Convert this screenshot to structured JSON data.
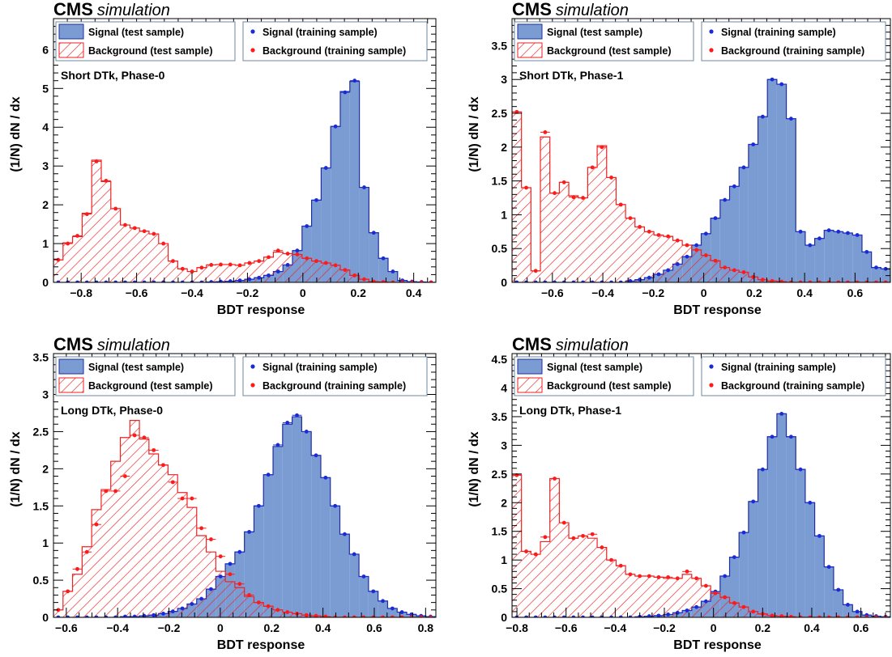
{
  "figure": {
    "colors": {
      "signal_fill": "#7b9bd3",
      "signal_line": "#1f2f9f",
      "signal_point": "#1a2bd6",
      "background_line": "#ee2222",
      "background_point": "#ff1a1a",
      "legend_border": "#6f8aa0"
    },
    "legend": {
      "signal_test": "Signal (test sample)",
      "background_test": "Background (test sample)",
      "signal_train": "Signal (training sample)",
      "background_train": "Background (training sample)"
    }
  },
  "chart_data": [
    {
      "type": "histogram",
      "cms_label": "CMS",
      "simulation_label": "simulation",
      "panel_label": "Short DTk, Phase-0",
      "xlabel": "BDT response",
      "ylabel": "(1/N) dN / dx",
      "xlim": [
        -0.9,
        0.48
      ],
      "ylim": [
        0,
        6.8
      ],
      "xticks": [
        -0.8,
        -0.6,
        -0.4,
        -0.2,
        0,
        0.2,
        0.4
      ],
      "xtick_labels": [
        "−0.8",
        "−0.6",
        "−0.4",
        "−0.2",
        "0",
        "0.2",
        "0.4"
      ],
      "yticks": [
        0,
        1,
        2,
        3,
        4,
        5,
        6
      ],
      "ytick_labels": [
        "0",
        "1",
        "2",
        "3",
        "4",
        "5",
        "6"
      ],
      "bins_start": -0.9,
      "bin_width": 0.0345,
      "signal": [
        0.0,
        0.0,
        0.0,
        0.0,
        0.0,
        0.0,
        0.0,
        0.0,
        0.0,
        0.0,
        0.0,
        0.0,
        0.0,
        0.0,
        0.0,
        0.0,
        0.01,
        0.02,
        0.03,
        0.05,
        0.08,
        0.12,
        0.18,
        0.28,
        0.45,
        0.82,
        1.45,
        2.12,
        2.95,
        4.02,
        4.92,
        5.18,
        2.45,
        1.28,
        0.62,
        0.28,
        0.05,
        0.02,
        0.01,
        0.0
      ],
      "background": [
        0.58,
        1.02,
        1.18,
        1.78,
        3.15,
        2.6,
        1.9,
        1.48,
        1.4,
        1.32,
        1.25,
        1.0,
        0.55,
        0.35,
        0.28,
        0.38,
        0.45,
        0.46,
        0.46,
        0.44,
        0.5,
        0.55,
        0.65,
        0.78,
        0.74,
        0.72,
        0.62,
        0.55,
        0.5,
        0.44,
        0.32,
        0.18,
        0.08,
        0.02,
        0.01,
        0.0,
        0.0,
        0.0,
        0.0,
        0.0
      ],
      "signal_train": [
        0.0,
        0.0,
        0.0,
        0.0,
        0.0,
        0.0,
        0.0,
        0.0,
        0.0,
        0.0,
        0.0,
        0.0,
        0.0,
        0.0,
        0.0,
        0.0,
        0.01,
        0.02,
        0.03,
        0.05,
        0.08,
        0.12,
        0.18,
        0.28,
        0.45,
        0.82,
        1.45,
        2.12,
        2.95,
        4.02,
        4.9,
        5.2,
        2.45,
        1.28,
        0.62,
        0.28,
        0.05,
        0.02,
        0.01,
        0.0
      ],
      "background_train": [
        0.58,
        1.0,
        1.2,
        1.76,
        3.12,
        2.62,
        1.9,
        1.48,
        1.4,
        1.32,
        1.25,
        1.0,
        0.55,
        0.35,
        0.28,
        0.38,
        0.45,
        0.46,
        0.46,
        0.44,
        0.5,
        0.55,
        0.65,
        0.82,
        0.74,
        0.72,
        0.62,
        0.55,
        0.5,
        0.44,
        0.32,
        0.18,
        0.08,
        0.02,
        0.01,
        0.0,
        0.0,
        0.0,
        0.0,
        0.0
      ]
    },
    {
      "type": "histogram",
      "cms_label": "CMS",
      "simulation_label": "simulation",
      "panel_label": "Short DTk, Phase-1",
      "xlabel": "BDT response",
      "ylabel": "(1/N) dN / dx",
      "xlim": [
        -0.76,
        0.74
      ],
      "ylim": [
        0,
        3.9
      ],
      "xticks": [
        -0.6,
        -0.4,
        -0.2,
        0,
        0.2,
        0.4,
        0.6
      ],
      "xtick_labels": [
        "−0.6",
        "−0.4",
        "−0.2",
        "0",
        "0.2",
        "0.4",
        "0.6"
      ],
      "yticks": [
        0,
        0.5,
        1,
        1.5,
        2,
        2.5,
        3,
        3.5
      ],
      "ytick_labels": [
        "0",
        "0.5",
        "1",
        "1.5",
        "2",
        "2.5",
        "3",
        "3.5"
      ],
      "bins_start": -0.76,
      "bin_width": 0.0375,
      "signal": [
        0.0,
        0.0,
        0.0,
        0.0,
        0.0,
        0.0,
        0.0,
        0.0,
        0.0,
        0.0,
        0.0,
        0.0,
        0.02,
        0.04,
        0.07,
        0.12,
        0.18,
        0.27,
        0.38,
        0.55,
        0.72,
        0.95,
        1.22,
        1.42,
        1.7,
        2.04,
        2.45,
        3.0,
        2.93,
        2.42,
        0.75,
        0.55,
        0.65,
        0.77,
        0.75,
        0.73,
        0.7,
        0.45,
        0.22,
        0.2
      ],
      "background": [
        2.52,
        1.4,
        0.17,
        2.15,
        1.32,
        1.48,
        1.28,
        1.25,
        1.7,
        2.02,
        1.55,
        1.15,
        0.95,
        0.82,
        0.75,
        0.7,
        0.68,
        0.62,
        0.55,
        0.48,
        0.4,
        0.32,
        0.22,
        0.18,
        0.15,
        0.08,
        0.04,
        0.02,
        0.01,
        0.0,
        0.0,
        0.0,
        0.0,
        0.0,
        0.0,
        0.0,
        0.0,
        0.0,
        0.0,
        0.0
      ],
      "signal_train": [
        0.0,
        0.0,
        0.0,
        0.0,
        0.0,
        0.0,
        0.0,
        0.0,
        0.0,
        0.0,
        0.0,
        0.0,
        0.02,
        0.04,
        0.07,
        0.12,
        0.18,
        0.27,
        0.38,
        0.55,
        0.72,
        0.95,
        1.22,
        1.42,
        1.7,
        2.04,
        2.45,
        3.0,
        2.93,
        2.42,
        0.75,
        0.55,
        0.65,
        0.77,
        0.75,
        0.73,
        0.7,
        0.45,
        0.22,
        0.2
      ],
      "background_train": [
        2.52,
        1.4,
        0.17,
        2.22,
        1.32,
        1.48,
        1.26,
        1.25,
        1.7,
        2.0,
        1.55,
        1.15,
        0.95,
        0.82,
        0.75,
        0.7,
        0.68,
        0.62,
        0.55,
        0.48,
        0.4,
        0.32,
        0.22,
        0.18,
        0.15,
        0.08,
        0.04,
        0.02,
        0.01,
        0.0,
        0.0,
        0.0,
        0.0,
        0.0,
        0.0,
        0.0,
        0.0,
        0.0,
        0.0,
        0.0
      ]
    },
    {
      "type": "histogram",
      "cms_label": "CMS",
      "simulation_label": "simulation",
      "panel_label": "Long DTk, Phase-0",
      "xlabel": "BDT response",
      "ylabel": "(1/N) dN / dx",
      "xlim": [
        -0.65,
        0.84
      ],
      "ylim": [
        0,
        3.55
      ],
      "xticks": [
        -0.6,
        -0.4,
        -0.2,
        0,
        0.2,
        0.4,
        0.6,
        0.8
      ],
      "xtick_labels": [
        "−0.6",
        "−0.4",
        "−0.2",
        "0",
        "0.2",
        "0.4",
        "0.6",
        "0.8"
      ],
      "yticks": [
        0,
        0.5,
        1,
        1.5,
        2,
        2.5,
        3,
        3.5
      ],
      "ytick_labels": [
        "0",
        "0.5",
        "1",
        "1.5",
        "2",
        "2.5",
        "3",
        "3.5"
      ],
      "bins_start": -0.65,
      "bin_width": 0.0372,
      "signal": [
        0.0,
        0.0,
        0.0,
        0.0,
        0.0,
        0.0,
        0.0,
        0.01,
        0.01,
        0.02,
        0.03,
        0.05,
        0.08,
        0.12,
        0.18,
        0.25,
        0.38,
        0.55,
        0.72,
        0.88,
        1.15,
        1.5,
        1.92,
        2.3,
        2.6,
        2.7,
        2.5,
        2.18,
        1.88,
        1.5,
        1.12,
        0.85,
        0.55,
        0.35,
        0.22,
        0.12,
        0.07,
        0.04,
        0.02,
        0.01
      ],
      "background": [
        0.1,
        0.35,
        0.58,
        0.95,
        1.45,
        1.72,
        2.1,
        2.42,
        2.65,
        2.4,
        2.2,
        2.05,
        1.92,
        1.68,
        1.48,
        1.1,
        0.88,
        0.62,
        0.48,
        0.4,
        0.28,
        0.2,
        0.15,
        0.1,
        0.07,
        0.05,
        0.03,
        0.02,
        0.01,
        0.0,
        0.0,
        0.0,
        0.0,
        0.0,
        0.0,
        0.0,
        0.0,
        0.0,
        0.0,
        0.0
      ],
      "signal_train": [
        0.0,
        0.0,
        0.0,
        0.0,
        0.0,
        0.0,
        0.0,
        0.01,
        0.01,
        0.02,
        0.03,
        0.05,
        0.08,
        0.12,
        0.18,
        0.25,
        0.38,
        0.55,
        0.72,
        0.88,
        1.15,
        1.5,
        1.92,
        2.32,
        2.62,
        2.72,
        2.5,
        2.18,
        1.88,
        1.5,
        1.12,
        0.85,
        0.55,
        0.35,
        0.22,
        0.12,
        0.07,
        0.04,
        0.02,
        0.01
      ],
      "background_train": [
        0.1,
        0.35,
        0.65,
        0.88,
        1.25,
        1.7,
        1.7,
        1.9,
        2.45,
        2.42,
        2.25,
        2.05,
        1.82,
        1.6,
        1.6,
        1.2,
        1.05,
        0.82,
        0.58,
        0.45,
        0.3,
        0.2,
        0.15,
        0.1,
        0.07,
        0.05,
        0.03,
        0.02,
        0.01,
        0.0,
        0.0,
        0.0,
        0.0,
        0.0,
        0.0,
        0.0,
        0.0,
        0.0,
        0.0,
        0.0
      ]
    },
    {
      "type": "histogram",
      "cms_label": "CMS",
      "simulation_label": "simulation",
      "panel_label": "Long DTk, Phase-1",
      "xlabel": "BDT response",
      "ylabel": "(1/N) dN / dx",
      "xlim": [
        -0.82,
        0.72
      ],
      "ylim": [
        0,
        4.6
      ],
      "xticks": [
        -0.8,
        -0.6,
        -0.4,
        -0.2,
        0,
        0.2,
        0.4,
        0.6
      ],
      "xtick_labels": [
        "−0.8",
        "−0.6",
        "−0.4",
        "−0.2",
        "0",
        "0.2",
        "0.4",
        "0.6"
      ],
      "yticks": [
        0,
        0.5,
        1,
        1.5,
        2,
        2.5,
        3,
        3.5,
        4,
        4.5
      ],
      "ytick_labels": [
        "0",
        "0.5",
        "1",
        "1.5",
        "2",
        "2.5",
        "3",
        "3.5",
        "4",
        "4.5"
      ],
      "bins_start": -0.82,
      "bin_width": 0.0385,
      "signal": [
        0.0,
        0.0,
        0.0,
        0.0,
        0.0,
        0.0,
        0.0,
        0.0,
        0.0,
        0.0,
        0.0,
        0.0,
        0.0,
        0.01,
        0.02,
        0.03,
        0.05,
        0.08,
        0.12,
        0.18,
        0.28,
        0.45,
        0.72,
        1.05,
        1.48,
        2.02,
        2.58,
        3.15,
        3.55,
        3.15,
        2.58,
        2.0,
        1.42,
        0.88,
        0.48,
        0.22,
        0.1,
        0.04,
        0.02,
        0.01
      ],
      "background": [
        2.48,
        1.15,
        1.1,
        1.32,
        2.42,
        1.65,
        1.38,
        1.42,
        1.38,
        1.22,
        1.0,
        0.9,
        0.75,
        0.72,
        0.72,
        0.7,
        0.68,
        0.68,
        0.75,
        0.68,
        0.55,
        0.42,
        0.35,
        0.25,
        0.18,
        0.1,
        0.06,
        0.03,
        0.02,
        0.01,
        0.0,
        0.0,
        0.0,
        0.0,
        0.0,
        0.0,
        0.0,
        0.0,
        0.0,
        0.0
      ],
      "signal_train": [
        0.0,
        0.0,
        0.0,
        0.0,
        0.0,
        0.0,
        0.0,
        0.0,
        0.0,
        0.0,
        0.0,
        0.0,
        0.0,
        0.01,
        0.02,
        0.03,
        0.05,
        0.08,
        0.12,
        0.18,
        0.28,
        0.45,
        0.72,
        1.05,
        1.48,
        2.02,
        2.58,
        3.15,
        3.55,
        3.15,
        2.58,
        2.0,
        1.42,
        0.88,
        0.48,
        0.22,
        0.1,
        0.04,
        0.02,
        0.01
      ],
      "background_train": [
        2.48,
        1.15,
        1.1,
        1.4,
        2.42,
        1.65,
        1.38,
        1.42,
        1.45,
        1.22,
        1.0,
        0.9,
        0.75,
        0.72,
        0.72,
        0.7,
        0.7,
        0.68,
        0.8,
        0.68,
        0.55,
        0.42,
        0.35,
        0.25,
        0.18,
        0.1,
        0.06,
        0.03,
        0.02,
        0.01,
        0.0,
        0.0,
        0.0,
        0.0,
        0.0,
        0.0,
        0.0,
        0.0,
        0.0,
        0.0
      ]
    }
  ]
}
